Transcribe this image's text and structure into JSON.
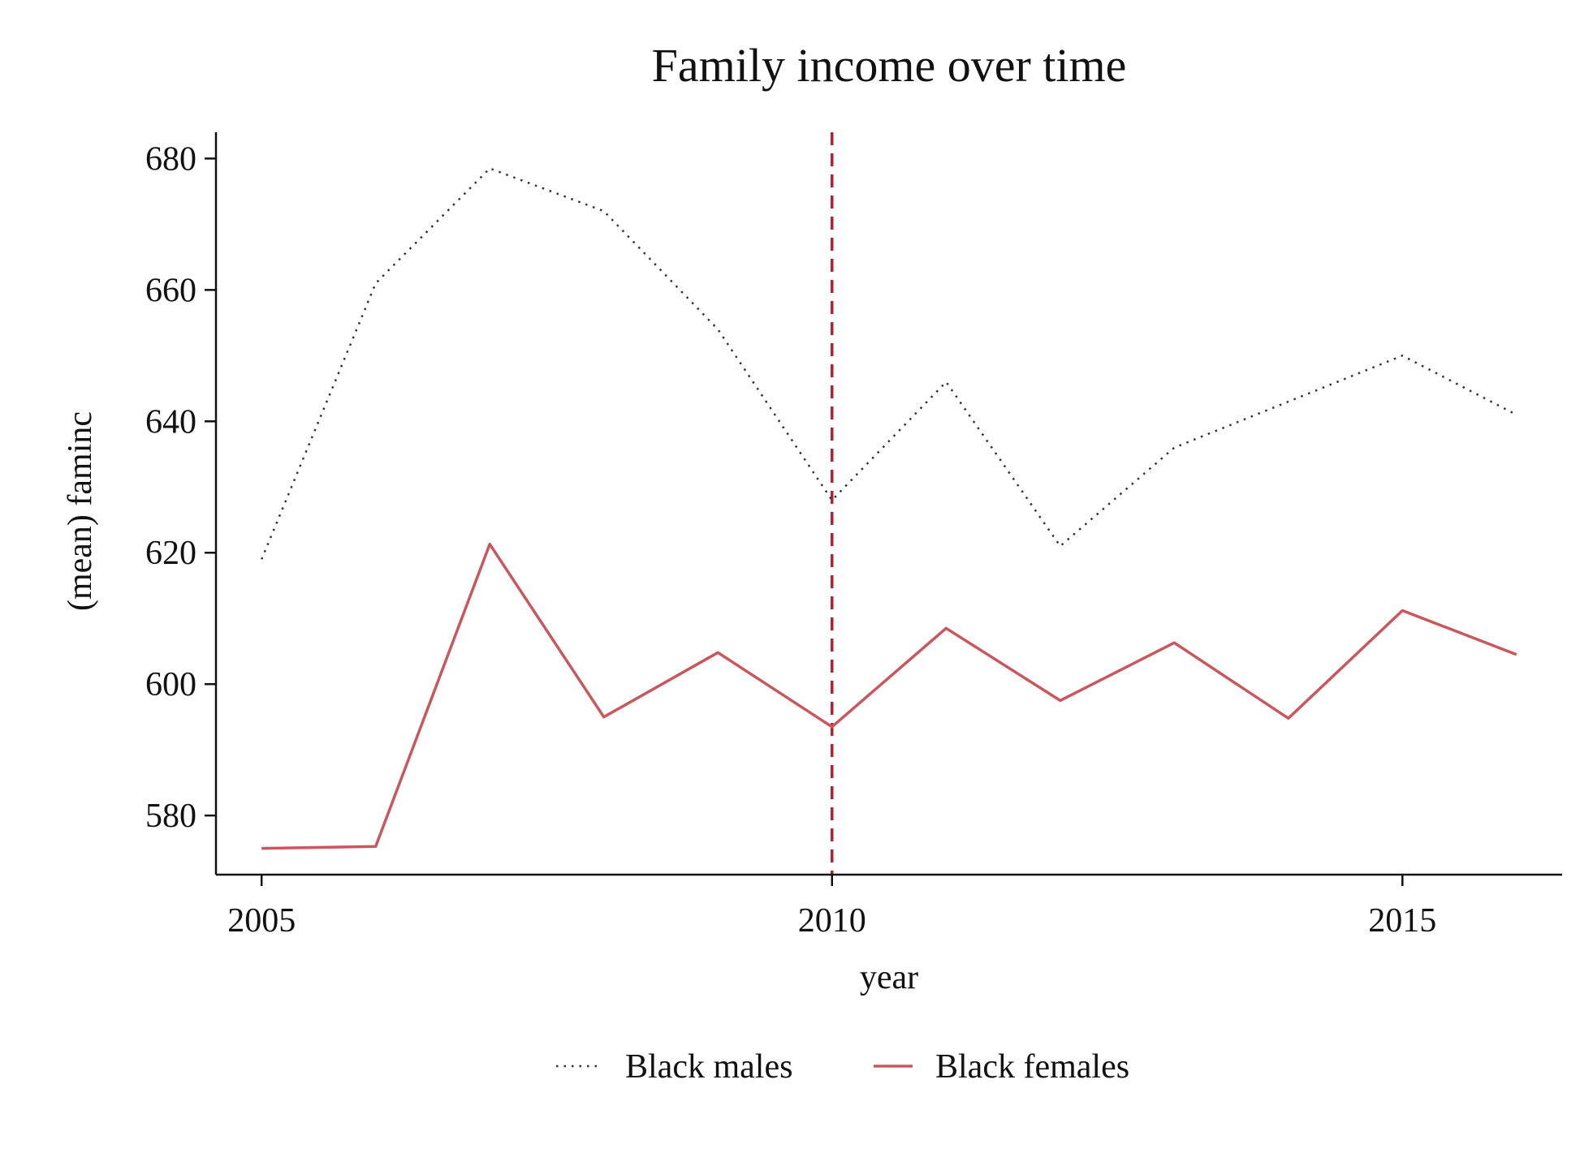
{
  "chart_data": {
    "type": "line",
    "title": "Family income over time",
    "xlabel": "year",
    "ylabel": "(mean) faminc",
    "xlim": [
      2004.6,
      2016.4
    ],
    "ylim": [
      571,
      684
    ],
    "x_ticks": [
      2005,
      2010,
      2015
    ],
    "y_ticks": [
      580,
      600,
      620,
      640,
      660,
      680
    ],
    "x": [
      2005,
      2006,
      2007,
      2008,
      2009,
      2010,
      2011,
      2012,
      2013,
      2014,
      2015,
      2016
    ],
    "series": [
      {
        "name": "Black males",
        "color": "#333333",
        "style": "dotted",
        "values": [
          619,
          661,
          678.5,
          672,
          654,
          628,
          646,
          621,
          636,
          643,
          650,
          641
        ]
      },
      {
        "name": "Black females",
        "color": "#c8585e",
        "style": "solid",
        "values": [
          575,
          575.3,
          621.3,
          595,
          604.8,
          593.5,
          608.5,
          597.5,
          606.3,
          594.8,
          611.2,
          604.5
        ]
      }
    ],
    "reference_line": {
      "x": 2010,
      "color": "#b5212d",
      "style": "dashed"
    },
    "grid": false,
    "legend_position": "bottom"
  }
}
